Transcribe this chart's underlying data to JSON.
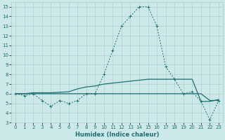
{
  "x": [
    0,
    1,
    2,
    3,
    4,
    5,
    6,
    7,
    8,
    9,
    10,
    11,
    12,
    13,
    14,
    15,
    16,
    17,
    18,
    19,
    20,
    21,
    22,
    23
  ],
  "line_main": [
    6.0,
    5.8,
    6.0,
    5.3,
    4.7,
    5.3,
    5.0,
    5.3,
    6.0,
    6.0,
    8.0,
    10.5,
    13.0,
    14.0,
    15.0,
    15.0,
    13.0,
    8.8,
    7.5,
    6.0,
    6.2,
    5.2,
    3.3,
    5.3
  ],
  "line_trend": [
    6.0,
    6.0,
    6.1,
    6.1,
    6.1,
    6.15,
    6.2,
    6.5,
    6.7,
    6.8,
    7.0,
    7.1,
    7.2,
    7.3,
    7.4,
    7.5,
    7.5,
    7.5,
    7.5,
    7.5,
    7.5,
    5.2,
    5.2,
    5.4
  ],
  "line_flat": [
    6.0,
    6.0,
    6.0,
    6.0,
    6.0,
    6.0,
    6.0,
    6.0,
    6.0,
    6.0,
    6.0,
    6.0,
    6.0,
    6.0,
    6.0,
    6.0,
    6.0,
    6.0,
    6.0,
    6.0,
    6.0,
    6.0,
    5.3,
    5.3
  ],
  "line_color": "#1f7070",
  "bg_color": "#cce8e8",
  "grid_color": "#aad0d0",
  "xlabel": "Humidex (Indice chaleur)",
  "ylim_min": 3,
  "ylim_max": 15.5,
  "xlim_min": -0.5,
  "xlim_max": 23.5,
  "yticks": [
    3,
    4,
    5,
    6,
    7,
    8,
    9,
    10,
    11,
    12,
    13,
    14,
    15
  ],
  "xticks": [
    0,
    1,
    2,
    3,
    4,
    5,
    6,
    7,
    8,
    9,
    10,
    11,
    12,
    13,
    14,
    15,
    16,
    17,
    18,
    19,
    20,
    21,
    22,
    23
  ],
  "xlabel_fontsize": 6,
  "tick_fontsize": 5
}
